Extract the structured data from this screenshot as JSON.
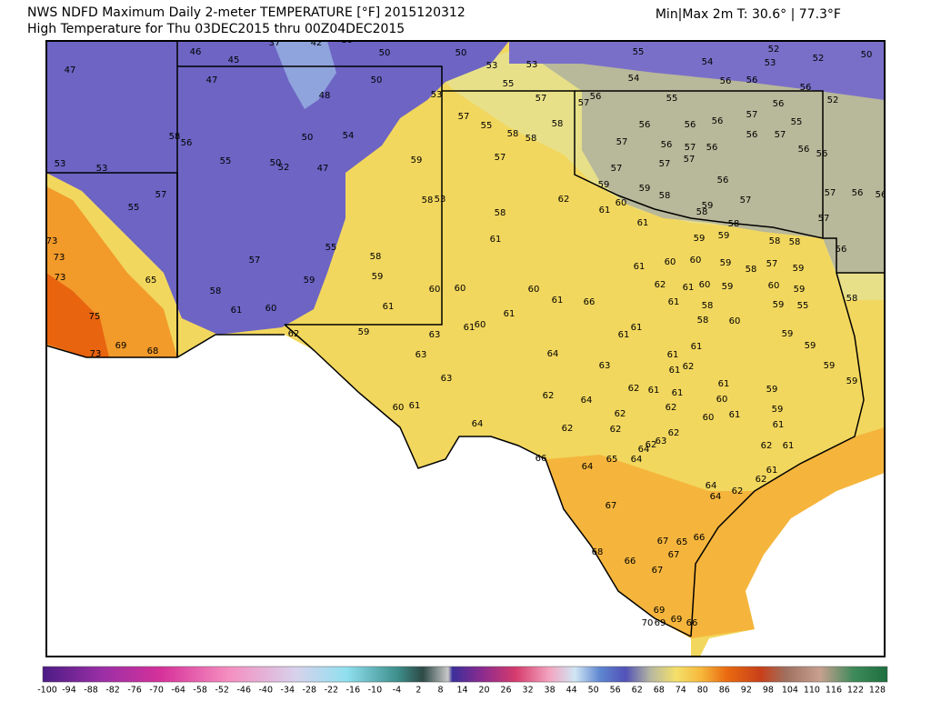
{
  "header": {
    "title": "NWS NDFD Maximum Daily 2-meter TEMPERATURE [°F]  2015120312",
    "subtitle": "High Temperature for Thu 03DEC2015 thru 00Z04DEC2015",
    "minmax": "Min|Max 2m T: 30.6°  |  77.3°F"
  },
  "stations": [
    47,
    46,
    45,
    47,
    37,
    42,
    39,
    50,
    50,
    53,
    53,
    55,
    54,
    52,
    53,
    52,
    50,
    50,
    48,
    53,
    55,
    57,
    56,
    54,
    55,
    56,
    56,
    56,
    56,
    52,
    57,
    55,
    58,
    58,
    58,
    57,
    56,
    56,
    56,
    57,
    55,
    58,
    56,
    50,
    54,
    55,
    50,
    52,
    47,
    53,
    53,
    59,
    57,
    57,
    56,
    57,
    56,
    56,
    57,
    56,
    56,
    57,
    57,
    57,
    56,
    57,
    56,
    56,
    55,
    57,
    58,
    53,
    62,
    59,
    60,
    59,
    58,
    59,
    57,
    58,
    61,
    61,
    58,
    58,
    57,
    61,
    59,
    59,
    58,
    58,
    56,
    73,
    73,
    55,
    58,
    57,
    61,
    60,
    60,
    59,
    58,
    57,
    59,
    73,
    65,
    58,
    59,
    59,
    60,
    60,
    60,
    61,
    66,
    62,
    61,
    60,
    59,
    60,
    59,
    58,
    61,
    60,
    61,
    61,
    61,
    58,
    59,
    55,
    75,
    62,
    59,
    63,
    61,
    60,
    61,
    61,
    58,
    60,
    59,
    59,
    69,
    68,
    73,
    63,
    64,
    63,
    61,
    61,
    61,
    62,
    59,
    63,
    62,
    61,
    61,
    61,
    60,
    59,
    59,
    62,
    64,
    60,
    61,
    60,
    61,
    59,
    62,
    62,
    61,
    64,
    62,
    62,
    62,
    63,
    62,
    61,
    66,
    64,
    65,
    64,
    64,
    62,
    61,
    64,
    62,
    62,
    67,
    64,
    68,
    67,
    66,
    65,
    67,
    66,
    67,
    69,
    70,
    69,
    69,
    66
  ],
  "colorbar": {
    "ticks": [
      -100,
      -94,
      -88,
      -82,
      -76,
      -70,
      -64,
      -58,
      -52,
      -46,
      -40,
      -34,
      -28,
      -22,
      -16,
      -10,
      -4,
      2,
      8,
      14,
      20,
      26,
      32,
      38,
      44,
      50,
      56,
      62,
      68,
      74,
      80,
      86,
      92,
      98,
      104,
      110,
      116,
      122,
      128
    ]
  }
}
